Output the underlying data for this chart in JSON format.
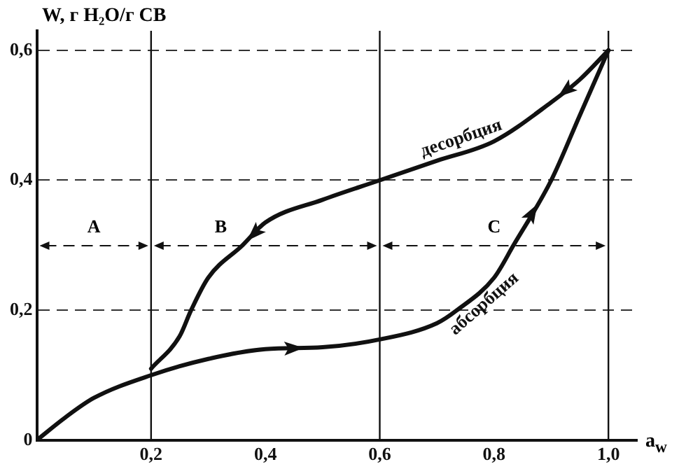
{
  "chart_data": {
    "type": "line",
    "xlabel": "a$_{w}$",
    "ylabel": "W, г H₂O/г СВ",
    "xlim": [
      0,
      1.05
    ],
    "ylim": [
      0,
      0.63
    ],
    "xticks": [
      {
        "value": 0.2,
        "label": "0,2"
      },
      {
        "value": 0.4,
        "label": "0,4"
      },
      {
        "value": 0.6,
        "label": "0,6"
      },
      {
        "value": 0.8,
        "label": "0,8"
      },
      {
        "value": 1.0,
        "label": "1,0"
      }
    ],
    "yticks": [
      {
        "value": 0,
        "label": "0"
      },
      {
        "value": 0.2,
        "label": "0,2"
      },
      {
        "value": 0.4,
        "label": "0,4"
      },
      {
        "value": 0.6,
        "label": "0,6"
      }
    ],
    "grid": "y",
    "legend": false,
    "marker": "none",
    "line_style": "solid",
    "series": [
      {
        "name": "десорбция",
        "color": "#111111",
        "x": [
          1.0,
          0.95,
          0.9,
          0.8,
          0.7,
          0.6,
          0.5,
          0.4,
          0.36,
          0.3,
          0.27,
          0.25,
          0.2
        ],
        "values": [
          0.6,
          0.555,
          0.52,
          0.46,
          0.43,
          0.4,
          0.37,
          0.335,
          0.3,
          0.25,
          0.2,
          0.16,
          0.11
        ]
      },
      {
        "name": "абсорбция",
        "color": "#111111",
        "x": [
          0,
          0.05,
          0.1,
          0.2,
          0.3,
          0.4,
          0.5,
          0.6,
          0.7,
          0.735,
          0.8,
          0.834,
          0.9,
          0.95,
          1.0
        ],
        "values": [
          0,
          0.035,
          0.065,
          0.1,
          0.125,
          0.14,
          0.143,
          0.155,
          0.18,
          0.2,
          0.25,
          0.3,
          0.4,
          0.5,
          0.6
        ]
      }
    ],
    "ref_lines": [
      {
        "axis": "x",
        "value": 0.2
      },
      {
        "axis": "x",
        "value": 0.6
      },
      {
        "axis": "x",
        "value": 1.0
      }
    ],
    "annotations": [
      "A",
      "B",
      "C"
    ]
  }
}
